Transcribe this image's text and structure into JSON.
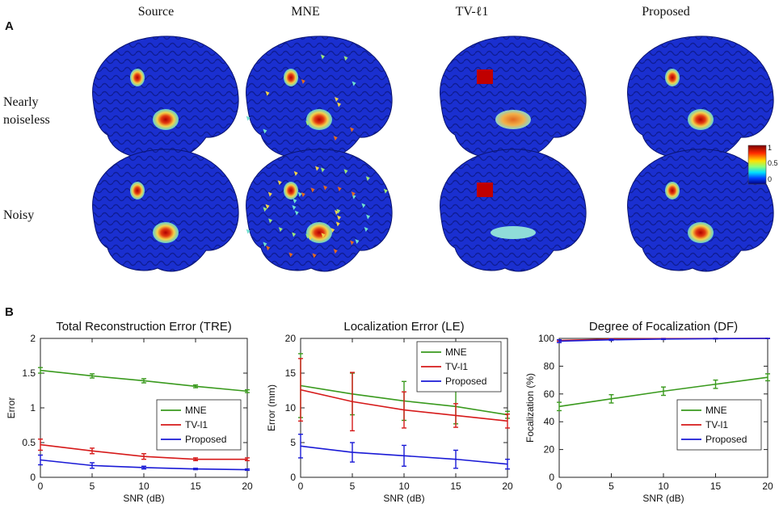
{
  "panels": {
    "a": "A",
    "b": "B"
  },
  "brain_grid": {
    "columns": [
      "Source",
      "MNE",
      "TV-ℓ1",
      "Proposed"
    ],
    "rows": [
      {
        "label_line1": "Nearly",
        "label_line2": "noiseless"
      },
      {
        "label_line1": "Noisy",
        "label_line2": ""
      }
    ],
    "colorbar": {
      "ticks": [
        "1",
        "0.5",
        "0"
      ]
    }
  },
  "colors": {
    "MNE": "#3a9a1e",
    "TV-l1": "#d61a1a",
    "Proposed": "#1a1ad6",
    "brain": "#1a2fd0"
  },
  "chart_data": [
    {
      "type": "line",
      "title": "Total Reconstruction Error (TRE)",
      "xlabel": "SNR (dB)",
      "ylabel": "Error",
      "x": [
        0,
        5,
        10,
        15,
        20
      ],
      "xlim": [
        0,
        20
      ],
      "ylim": [
        0,
        2
      ],
      "xticks": [
        "0",
        "5",
        "10",
        "15",
        "20"
      ],
      "yticks": [
        0,
        0.5,
        1,
        1.5,
        2
      ],
      "ytick_labels": [
        "0",
        "0.5",
        "1",
        "1.5",
        "2"
      ],
      "legend": "bottom-right",
      "series": [
        {
          "name": "MNE",
          "values": [
            1.54,
            1.46,
            1.39,
            1.31,
            1.24
          ],
          "err": [
            0.04,
            0.03,
            0.03,
            0.02,
            0.02
          ]
        },
        {
          "name": "TV-l1",
          "values": [
            0.47,
            0.38,
            0.3,
            0.26,
            0.26
          ],
          "err": [
            0.08,
            0.04,
            0.04,
            0.02,
            0.02
          ]
        },
        {
          "name": "Proposed",
          "values": [
            0.25,
            0.17,
            0.14,
            0.12,
            0.11
          ],
          "err": [
            0.07,
            0.04,
            0.02,
            0.01,
            0.01
          ]
        }
      ]
    },
    {
      "type": "line",
      "title": "Localization Error (LE)",
      "xlabel": "SNR (dB)",
      "ylabel": "Error (mm)",
      "x": [
        0,
        5,
        10,
        15,
        20
      ],
      "xlim": [
        0,
        20
      ],
      "ylim": [
        0,
        20
      ],
      "xticks": [
        "0",
        "5",
        "10",
        "15",
        "20"
      ],
      "yticks": [
        0,
        5,
        10,
        15,
        20
      ],
      "ytick_labels": [
        "0",
        "5",
        "10",
        "15",
        "20"
      ],
      "legend": "top-right",
      "series": [
        {
          "name": "MNE",
          "values": [
            13.2,
            12.0,
            11.0,
            10.2,
            9.0
          ],
          "err": [
            4.6,
            3.0,
            2.8,
            2.5,
            0.5
          ]
        },
        {
          "name": "TV-l1",
          "values": [
            12.6,
            10.9,
            9.7,
            8.9,
            8.1
          ],
          "err": [
            4.5,
            4.2,
            2.6,
            1.7,
            1.0
          ]
        },
        {
          "name": "Proposed",
          "values": [
            4.5,
            3.6,
            3.1,
            2.6,
            1.9
          ],
          "err": [
            1.7,
            1.4,
            1.5,
            1.3,
            0.7
          ]
        }
      ]
    },
    {
      "type": "line",
      "title": "Degree of Focalization (DF)",
      "xlabel": "SNR (dB)",
      "ylabel": "Focalization (%)",
      "x": [
        0,
        5,
        10,
        15,
        20
      ],
      "xlim": [
        0,
        20
      ],
      "ylim": [
        0,
        100
      ],
      "xticks": [
        "0",
        "5",
        "10",
        "15",
        "20"
      ],
      "yticks": [
        0,
        20,
        40,
        60,
        80,
        100
      ],
      "ytick_labels": [
        "0",
        "20",
        "40",
        "60",
        "80",
        "100"
      ],
      "legend": "bottom-right",
      "series": [
        {
          "name": "MNE",
          "values": [
            51,
            56.5,
            62,
            67,
            72
          ],
          "err": [
            3,
            3,
            3,
            3,
            2.5
          ]
        },
        {
          "name": "TV-l1",
          "values": [
            98.5,
            99.5,
            99.8,
            99.9,
            100
          ],
          "err": [
            0.5,
            0.3,
            0.2,
            0.1,
            0.1
          ]
        },
        {
          "name": "Proposed",
          "values": [
            98,
            99,
            99.5,
            99.8,
            100
          ],
          "err": [
            1,
            0.5,
            0.3,
            0.2,
            0.1
          ]
        }
      ]
    }
  ]
}
